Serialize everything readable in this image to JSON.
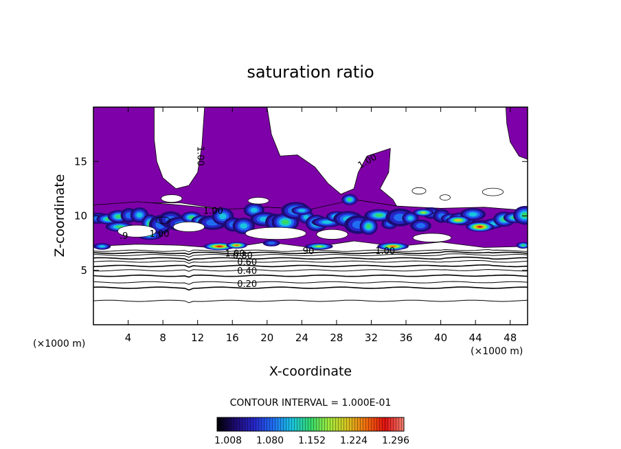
{
  "chart_data": {
    "type": "heatmap",
    "title": "saturation ratio",
    "xlabel": "X-coordinate",
    "ylabel": "Z-coordinate",
    "x_unit": "(×1000 m)",
    "z_unit": "(×1000 m)",
    "xlim": [
      0,
      50
    ],
    "ylim": [
      0,
      20
    ],
    "x_ticks": [
      4,
      8,
      12,
      16,
      20,
      24,
      28,
      32,
      36,
      40,
      44,
      48
    ],
    "y_ticks": [
      5,
      10,
      15
    ],
    "contour_interval": "CONTOUR INTERVAL = 1.000E-01",
    "contour_levels": [
      0.1,
      0.2,
      0.3,
      0.4,
      0.5,
      0.6,
      0.7,
      0.8,
      0.9
    ],
    "contour_labels": [
      {
        "text": "0.20",
        "x": 17.7,
        "z": 3.8
      },
      {
        "text": "0.40",
        "x": 17.7,
        "z": 5.0
      },
      {
        "text": "0.60",
        "x": 17.7,
        "z": 5.8
      },
      {
        "text": "0.80",
        "x": 17.2,
        "z": 6.4
      },
      {
        "text": "1.00",
        "x": 16.3,
        "z": 6.6
      },
      {
        "text": ".90",
        "x": 24.6,
        "z": 6.8
      },
      {
        "text": "1.00",
        "x": 33.6,
        "z": 6.8
      },
      {
        "text": "1.00",
        "x": 7.6,
        "z": 8.4
      },
      {
        "text": "1.00",
        "x": 13.8,
        "z": 10.5
      },
      {
        "text": "1.00",
        "x": 31.7,
        "z": 14.8
      },
      {
        "text": "1.00",
        "x": 12.0,
        "z": 15.5
      },
      {
        "text": ".9",
        "x": 3.5,
        "z": 8.2
      }
    ],
    "colorbar": {
      "ticks": [
        "1.008",
        "1.080",
        "1.152",
        "1.224",
        "1.296"
      ],
      "colors": [
        "#000000",
        "#1e0b73",
        "#2626c8",
        "#1f6df2",
        "#19c4e0",
        "#33d86b",
        "#a0e83a",
        "#d8c01e",
        "#f06a0e",
        "#e01010",
        "#f08070"
      ]
    },
    "supersaturated_fill_color": "#7e00a8"
  }
}
